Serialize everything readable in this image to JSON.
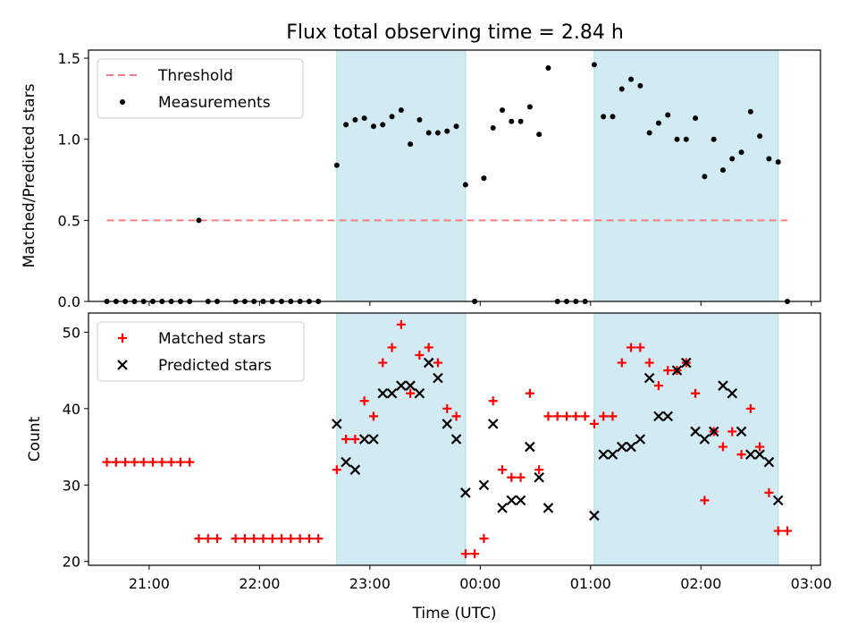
{
  "title": "Flux total observing time = 2.84 h",
  "colors": {
    "threshold": "#f08080",
    "measurement": "#000000",
    "matched": "#ff0000",
    "predicted": "#000000",
    "shade": "#add8e6"
  },
  "chart_data": [
    {
      "type": "scatter",
      "panel": "top",
      "ylabel": "Matched/Predicted stars",
      "ylim": [
        0,
        1.55
      ],
      "yticks": [
        0.0,
        0.5,
        1.0,
        1.5
      ],
      "xlim": [
        "20:27",
        "03:05"
      ],
      "shaded_intervals": [
        [
          "22:42",
          "23:52"
        ],
        [
          "01:02",
          "02:42"
        ]
      ],
      "legend": {
        "placement": "top-left",
        "entries": [
          "Threshold",
          "Measurements"
        ]
      },
      "threshold": {
        "name": "Threshold",
        "value": 0.5,
        "x_range": [
          "20:37",
          "02:47"
        ]
      },
      "series": [
        {
          "name": "Measurements",
          "points": [
            [
              "20:37",
              0
            ],
            [
              "20:42",
              0
            ],
            [
              "20:47",
              0
            ],
            [
              "20:52",
              0
            ],
            [
              "20:57",
              0
            ],
            [
              "21:02",
              0
            ],
            [
              "21:07",
              0
            ],
            [
              "21:12",
              0
            ],
            [
              "21:17",
              0
            ],
            [
              "21:22",
              0
            ],
            [
              "21:27",
              0.5
            ],
            [
              "21:32",
              0
            ],
            [
              "21:37",
              0
            ],
            [
              "21:47",
              0
            ],
            [
              "21:52",
              0
            ],
            [
              "21:57",
              0
            ],
            [
              "22:02",
              0
            ],
            [
              "22:07",
              0
            ],
            [
              "22:12",
              0
            ],
            [
              "22:17",
              0
            ],
            [
              "22:22",
              0
            ],
            [
              "22:27",
              0
            ],
            [
              "22:32",
              0
            ],
            [
              "22:42",
              0.84
            ],
            [
              "22:47",
              1.09
            ],
            [
              "22:52",
              1.12
            ],
            [
              "22:57",
              1.13
            ],
            [
              "23:02",
              1.08
            ],
            [
              "23:07",
              1.09
            ],
            [
              "23:12",
              1.14
            ],
            [
              "23:17",
              1.18
            ],
            [
              "23:22",
              0.97
            ],
            [
              "23:27",
              1.12
            ],
            [
              "23:32",
              1.04
            ],
            [
              "23:37",
              1.04
            ],
            [
              "23:42",
              1.05
            ],
            [
              "23:47",
              1.08
            ],
            [
              "23:52",
              0.72
            ],
            [
              "23:57",
              0
            ],
            [
              "24:02",
              0.76
            ],
            [
              "24:07",
              1.07
            ],
            [
              "24:12",
              1.18
            ],
            [
              "24:17",
              1.11
            ],
            [
              "24:22",
              1.11
            ],
            [
              "24:27",
              1.2
            ],
            [
              "24:32",
              1.03
            ],
            [
              "24:37",
              1.44
            ],
            [
              "24:42",
              0
            ],
            [
              "24:47",
              0
            ],
            [
              "24:52",
              0
            ],
            [
              "24:57",
              0
            ],
            [
              "25:02",
              1.46
            ],
            [
              "25:07",
              1.14
            ],
            [
              "25:12",
              1.14
            ],
            [
              "25:17",
              1.31
            ],
            [
              "25:22",
              1.37
            ],
            [
              "25:27",
              1.33
            ],
            [
              "25:32",
              1.04
            ],
            [
              "25:37",
              1.1
            ],
            [
              "25:42",
              1.15
            ],
            [
              "25:47",
              1.0
            ],
            [
              "25:52",
              1.0
            ],
            [
              "25:57",
              1.13
            ],
            [
              "26:02",
              0.77
            ],
            [
              "26:07",
              1.0
            ],
            [
              "26:12",
              0.81
            ],
            [
              "26:17",
              0.88
            ],
            [
              "26:22",
              0.92
            ],
            [
              "26:27",
              1.17
            ],
            [
              "26:32",
              1.02
            ],
            [
              "26:37",
              0.88
            ],
            [
              "26:42",
              0.86
            ],
            [
              "26:47",
              0
            ]
          ]
        }
      ]
    },
    {
      "type": "scatter",
      "panel": "bottom",
      "ylabel": "Count",
      "xlabel": "Time (UTC)",
      "ylim": [
        19.5,
        52.5
      ],
      "yticks": [
        20,
        30,
        40,
        50
      ],
      "xlim": [
        "20:27",
        "03:05"
      ],
      "xticks": [
        "21:00",
        "22:00",
        "23:00",
        "00:00",
        "01:00",
        "02:00",
        "03:00"
      ],
      "shaded_intervals": [
        [
          "22:42",
          "23:52"
        ],
        [
          "01:02",
          "02:42"
        ]
      ],
      "legend": {
        "placement": "top-left",
        "entries": [
          "Matched stars",
          "Predicted stars"
        ]
      },
      "series": [
        {
          "name": "Matched stars",
          "marker": "plus",
          "points": [
            [
              "20:37",
              33
            ],
            [
              "20:42",
              33
            ],
            [
              "20:47",
              33
            ],
            [
              "20:52",
              33
            ],
            [
              "20:57",
              33
            ],
            [
              "21:02",
              33
            ],
            [
              "21:07",
              33
            ],
            [
              "21:12",
              33
            ],
            [
              "21:17",
              33
            ],
            [
              "21:22",
              33
            ],
            [
              "21:27",
              23
            ],
            [
              "21:32",
              23
            ],
            [
              "21:37",
              23
            ],
            [
              "21:47",
              23
            ],
            [
              "21:52",
              23
            ],
            [
              "21:57",
              23
            ],
            [
              "22:02",
              23
            ],
            [
              "22:07",
              23
            ],
            [
              "22:12",
              23
            ],
            [
              "22:17",
              23
            ],
            [
              "22:22",
              23
            ],
            [
              "22:27",
              23
            ],
            [
              "22:32",
              23
            ],
            [
              "22:42",
              32
            ],
            [
              "22:47",
              36
            ],
            [
              "22:52",
              36
            ],
            [
              "22:57",
              41
            ],
            [
              "23:02",
              39
            ],
            [
              "23:07",
              46
            ],
            [
              "23:12",
              48
            ],
            [
              "23:17",
              51
            ],
            [
              "23:22",
              42
            ],
            [
              "23:27",
              47
            ],
            [
              "23:32",
              48
            ],
            [
              "23:37",
              46
            ],
            [
              "23:42",
              40
            ],
            [
              "23:47",
              39
            ],
            [
              "23:52",
              21
            ],
            [
              "23:57",
              21
            ],
            [
              "24:02",
              23
            ],
            [
              "24:07",
              41
            ],
            [
              "24:12",
              32
            ],
            [
              "24:17",
              31
            ],
            [
              "24:22",
              31
            ],
            [
              "24:27",
              42
            ],
            [
              "24:32",
              32
            ],
            [
              "24:37",
              39
            ],
            [
              "24:42",
              39
            ],
            [
              "24:47",
              39
            ],
            [
              "24:52",
              39
            ],
            [
              "24:57",
              39
            ],
            [
              "25:02",
              38
            ],
            [
              "25:07",
              39
            ],
            [
              "25:12",
              39
            ],
            [
              "25:17",
              46
            ],
            [
              "25:22",
              48
            ],
            [
              "25:27",
              48
            ],
            [
              "25:32",
              46
            ],
            [
              "25:37",
              43
            ],
            [
              "25:42",
              45
            ],
            [
              "25:47",
              45
            ],
            [
              "25:52",
              46
            ],
            [
              "25:57",
              42
            ],
            [
              "26:02",
              28
            ],
            [
              "26:07",
              37
            ],
            [
              "26:12",
              35
            ],
            [
              "26:17",
              37
            ],
            [
              "26:22",
              34
            ],
            [
              "26:27",
              40
            ],
            [
              "26:32",
              35
            ],
            [
              "26:37",
              29
            ],
            [
              "26:42",
              24
            ],
            [
              "26:47",
              24
            ]
          ]
        },
        {
          "name": "Predicted stars",
          "marker": "x",
          "points": [
            [
              "22:42",
              38
            ],
            [
              "22:47",
              33
            ],
            [
              "22:52",
              32
            ],
            [
              "22:57",
              36
            ],
            [
              "23:02",
              36
            ],
            [
              "23:07",
              42
            ],
            [
              "23:12",
              42
            ],
            [
              "23:17",
              43
            ],
            [
              "23:22",
              43
            ],
            [
              "23:27",
              42
            ],
            [
              "23:32",
              46
            ],
            [
              "23:37",
              44
            ],
            [
              "23:42",
              38
            ],
            [
              "23:47",
              36
            ],
            [
              "23:52",
              29
            ],
            [
              "24:02",
              30
            ],
            [
              "24:07",
              38
            ],
            [
              "24:12",
              27
            ],
            [
              "24:17",
              28
            ],
            [
              "24:22",
              28
            ],
            [
              "24:27",
              35
            ],
            [
              "24:32",
              31
            ],
            [
              "24:37",
              27
            ],
            [
              "25:02",
              26
            ],
            [
              "25:07",
              34
            ],
            [
              "25:12",
              34
            ],
            [
              "25:17",
              35
            ],
            [
              "25:22",
              35
            ],
            [
              "25:27",
              36
            ],
            [
              "25:32",
              44
            ],
            [
              "25:37",
              39
            ],
            [
              "25:42",
              39
            ],
            [
              "25:47",
              45
            ],
            [
              "25:52",
              46
            ],
            [
              "25:57",
              37
            ],
            [
              "26:02",
              36
            ],
            [
              "26:07",
              37
            ],
            [
              "26:12",
              43
            ],
            [
              "26:17",
              42
            ],
            [
              "26:22",
              37
            ],
            [
              "26:27",
              34
            ],
            [
              "26:32",
              34
            ],
            [
              "26:37",
              33
            ],
            [
              "26:42",
              28
            ]
          ]
        }
      ]
    }
  ]
}
